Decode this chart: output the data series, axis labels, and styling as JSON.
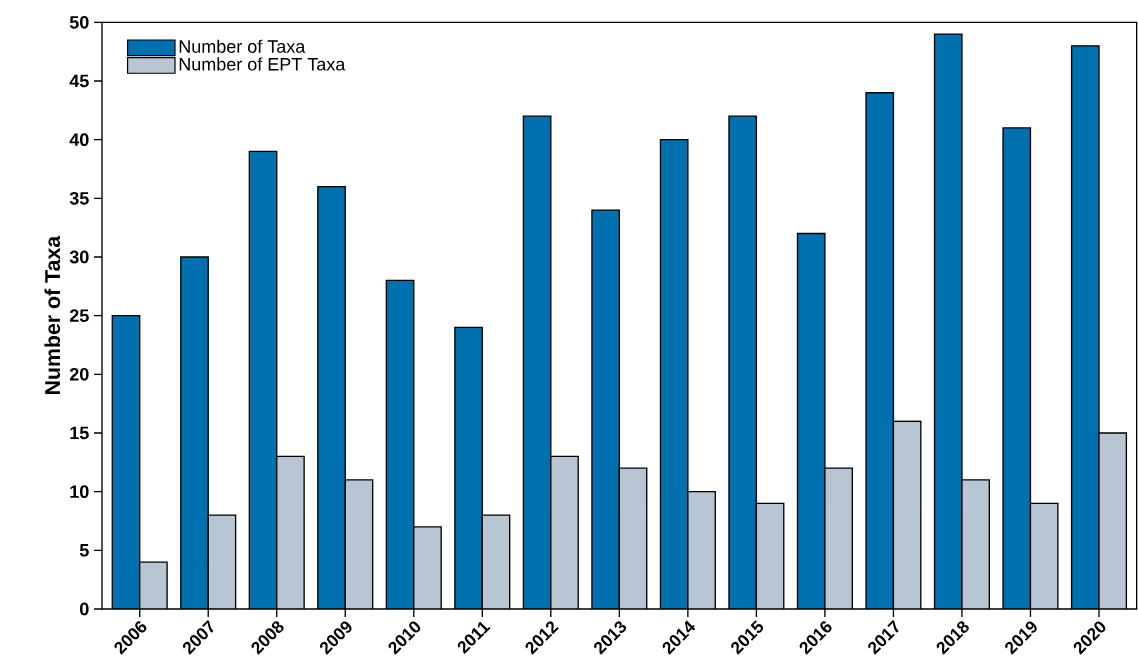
{
  "chart_data": {
    "type": "bar",
    "ylabel": "Number of Taxa",
    "categories": [
      "2006",
      "2007",
      "2008",
      "2009",
      "2010",
      "2011",
      "2012",
      "2013",
      "2014",
      "2015",
      "2016",
      "2017",
      "2018",
      "2019",
      "2020"
    ],
    "series": [
      {
        "name": "Number of Taxa",
        "color": "#0070ae",
        "values": [
          25,
          30,
          39,
          36,
          28,
          24,
          42,
          34,
          40,
          42,
          32,
          44,
          49,
          41,
          48
        ]
      },
      {
        "name": "Number of EPT Taxa",
        "color": "#b8c5d3",
        "values": [
          4,
          8,
          13,
          11,
          7,
          8,
          13,
          12,
          10,
          9,
          12,
          16,
          11,
          9,
          15
        ]
      }
    ],
    "ylim": [
      0,
      50
    ],
    "yticks": [
      0,
      5,
      10,
      15,
      20,
      25,
      30,
      35,
      40,
      45,
      50
    ],
    "grid": false,
    "legend": "top left"
  }
}
